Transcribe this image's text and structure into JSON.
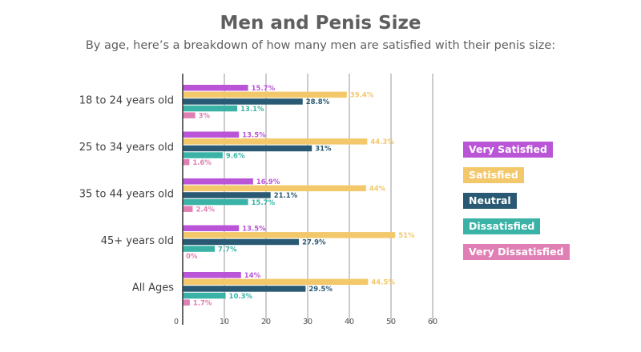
{
  "chart_data": {
    "type": "bar",
    "orientation": "horizontal",
    "title": "Men and Penis Size",
    "subtitle": "By age, here’s a breakdown of how many men are satisfied with their penis size:",
    "categories": [
      "18 to 24 years old",
      "25 to 34 years old",
      "35 to 44 years old",
      "45+ years old",
      "All Ages"
    ],
    "series": [
      {
        "name": "Very Satisfied",
        "color": "#b955d6",
        "values": [
          15.7,
          13.5,
          16.9,
          13.5,
          14
        ],
        "labels": [
          "15.7%",
          "13.5%",
          "16.9%",
          "13.5%",
          "14%"
        ]
      },
      {
        "name": "Satisfied",
        "color": "#f2c86b",
        "values": [
          39.4,
          44.3,
          44,
          51,
          44.5
        ],
        "labels": [
          "39.4%",
          "44.3%",
          "44%",
          "51%",
          "44.5%"
        ]
      },
      {
        "name": "Neutral",
        "color": "#2a5a73",
        "values": [
          28.8,
          31,
          21.1,
          27.9,
          29.5
        ],
        "labels": [
          "28.8%",
          "31%",
          "21.1%",
          "27.9%",
          "29.5%"
        ]
      },
      {
        "name": "Dissatisfied",
        "color": "#3ab3a6",
        "values": [
          13.1,
          9.6,
          15.7,
          7.7,
          10.3
        ],
        "labels": [
          "13.1%",
          "9.6%",
          "15.7%",
          "7.7%",
          "10.3%"
        ]
      },
      {
        "name": "Very Dissatisfied",
        "color": "#e07fb3",
        "values": [
          3,
          1.6,
          2.4,
          0,
          1.7
        ],
        "labels": [
          "3%",
          "1.6%",
          "2.4%",
          "0%",
          "1.7%"
        ]
      }
    ],
    "xlim": [
      0,
      60
    ],
    "xticks": [
      "0",
      "10",
      "20",
      "30",
      "40",
      "50",
      "60"
    ],
    "grid": true,
    "legend_position": "right"
  }
}
